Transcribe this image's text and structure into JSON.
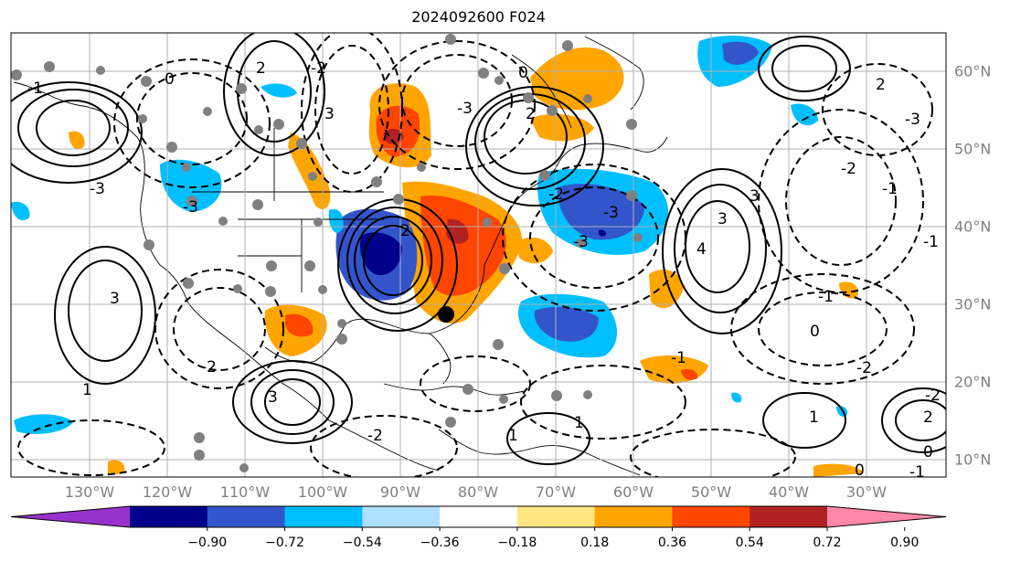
{
  "title": "2024092600 F024",
  "lon_labels": [
    "130°W",
    "120°W",
    "110°W",
    "100°W",
    "90°W",
    "80°W",
    "70°W",
    "60°W",
    "50°W",
    "40°W",
    "30°W"
  ],
  "lat_labels": [
    "60°N",
    "50°N",
    "40°N",
    "30°N",
    "20°N",
    "10°N"
  ],
  "colorbar": {
    "ticks": [
      "−0.90",
      "−0.72",
      "−0.54",
      "−0.36",
      "−0.18",
      "0.18",
      "0.36",
      "0.54",
      "0.72",
      "0.90"
    ],
    "colors": [
      "#9932cc",
      "#00008b",
      "#3355cc",
      "#00bfff",
      "#b0e0ff",
      "#ffffff",
      "#ffe680",
      "#ffa500",
      "#ff4500",
      "#b22222",
      "#ff88aa"
    ]
  },
  "contour_labels": [
    "3",
    "0",
    "-1",
    "-2",
    "-3",
    "0",
    "3",
    "2",
    "3",
    "-2",
    "2",
    "-3",
    "-2",
    "4",
    "-1",
    "3",
    "2",
    "0",
    "-1",
    "-2",
    "-3",
    "1",
    "-2",
    "-2",
    "3",
    "-3",
    "-3",
    "2",
    "1",
    "-3",
    "-1",
    "1",
    "0",
    "-1",
    "-2",
    "2",
    "1",
    "0",
    "-1"
  ],
  "colors": {
    "orange": "#ffa500",
    "red_orange": "#ff4500",
    "dark_red": "#b22222",
    "dark_blue": "#00008b",
    "blue": "#3355cc",
    "cyan": "#00bfff",
    "light_blue": "#b0e0ff",
    "marker_gray": "#808080"
  }
}
